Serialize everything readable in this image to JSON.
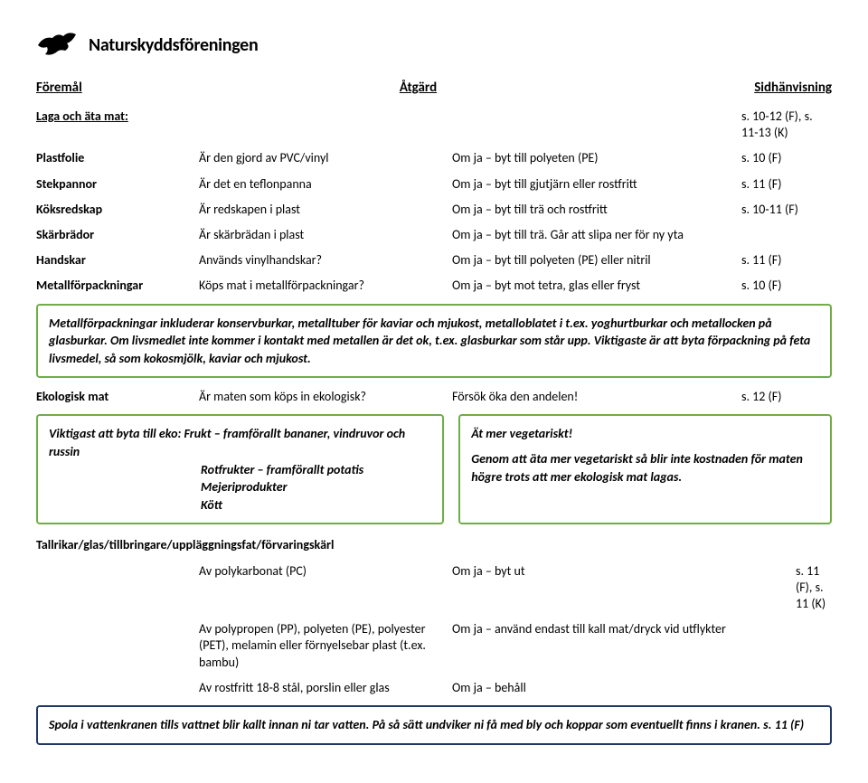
{
  "colors": {
    "box_green": "#70ad47",
    "box_navy": "#1f3864",
    "text": "#000000",
    "bg": "#ffffff"
  },
  "logo": {
    "text": "Naturskyddsföreningen"
  },
  "headers": {
    "c1": "Föremål",
    "c2": "Åtgärd",
    "c3": "Sidhänvisning"
  },
  "section1": {
    "title": "Laga och äta mat:",
    "title_ref": "s. 10-12 (F), s. 11-13 (K)",
    "rows": [
      {
        "c1": "Plastfolie",
        "c2": "Är den gjord av PVC/vinyl",
        "c3": "Om ja – byt till polyeten (PE)",
        "c4": "s. 10 (F)"
      },
      {
        "c1": "Stekpannor",
        "c2": "Är det en teflonpanna",
        "c3": "Om ja – byt till gjutjärn eller rostfritt",
        "c4": "s. 11 (F)"
      },
      {
        "c1": "Köksredskap",
        "c2": "Är redskapen i plast",
        "c3": "Om ja – byt till trä och rostfritt",
        "c4": "s. 10-11 (F)"
      },
      {
        "c1": "Skärbrädor",
        "c2": "Är skärbrädan i plast",
        "c3": "Om ja – byt till trä. Går att slipa ner för ny yta",
        "c4": ""
      },
      {
        "c1": "Handskar",
        "c2": "Används vinylhandskar?",
        "c3": "Om ja – byt till polyeten (PE) eller nitril",
        "c4": "s. 11 (F)"
      },
      {
        "c1": "Metallförpackningar",
        "c2": "Köps mat i metallförpackningar?",
        "c3": "Om ja – byt mot tetra, glas eller fryst",
        "c4": "s. 10 (F)"
      }
    ]
  },
  "box1": {
    "text": "Metallförpackningar inkluderar konservburkar, metalltuber för kaviar och mjukost, metalloblatet i t.ex. yoghurtburkar och metallocken på glasburkar. Om livsmedlet inte kommer i kontakt med metallen är det ok, t.ex. glasburkar som står upp. Viktigaste är att byta förpackning på feta livsmedel, så som kokosmjölk, kaviar och mjukost."
  },
  "eko_row": {
    "c1": "Ekologisk mat",
    "c2": "Är maten som köps in ekologisk?",
    "c3": "Försök öka den andelen!",
    "c4": "s. 12 (F)"
  },
  "box_pair": {
    "left": {
      "lead": "Viktigast att byta till eko: ",
      "items": [
        "Frukt – framförallt bananer, vindruvor och russin",
        "Rotfrukter – framförallt potatis",
        "Mejeriprodukter",
        "Kött"
      ]
    },
    "right": {
      "title": "Ät mer vegetariskt!",
      "body": "Genom att äta mer vegetariskt så blir inte kostnaden för maten högre trots att mer ekologisk mat lagas."
    }
  },
  "tallrikar": {
    "title": "Tallrikar/glas/tillbringare/uppläggningsfat/förvaringskärl",
    "rows": [
      {
        "c1": "Av polykarbonat (PC)",
        "c2": "Om ja – byt ut",
        "c3": "s. 11 (F), s. 11 (K)"
      },
      {
        "c1": "Av polypropen (PP), polyeten (PE), polyester (PET), melamin eller förnyelsebar plast (t.ex. bambu)",
        "c2": "Om ja – använd endast till kall mat/dryck vid utflykter",
        "c3": ""
      },
      {
        "c1": "Av rostfritt 18-8 stål, porslin eller glas",
        "c2": "Om ja – behåll",
        "c3": ""
      }
    ]
  },
  "box_bottom": {
    "text": "Spola i vattenkranen tills vattnet blir kallt innan ni tar vatten. På så sätt undviker ni få med bly och koppar som eventuellt finns i kranen. s. 11 (F)"
  }
}
